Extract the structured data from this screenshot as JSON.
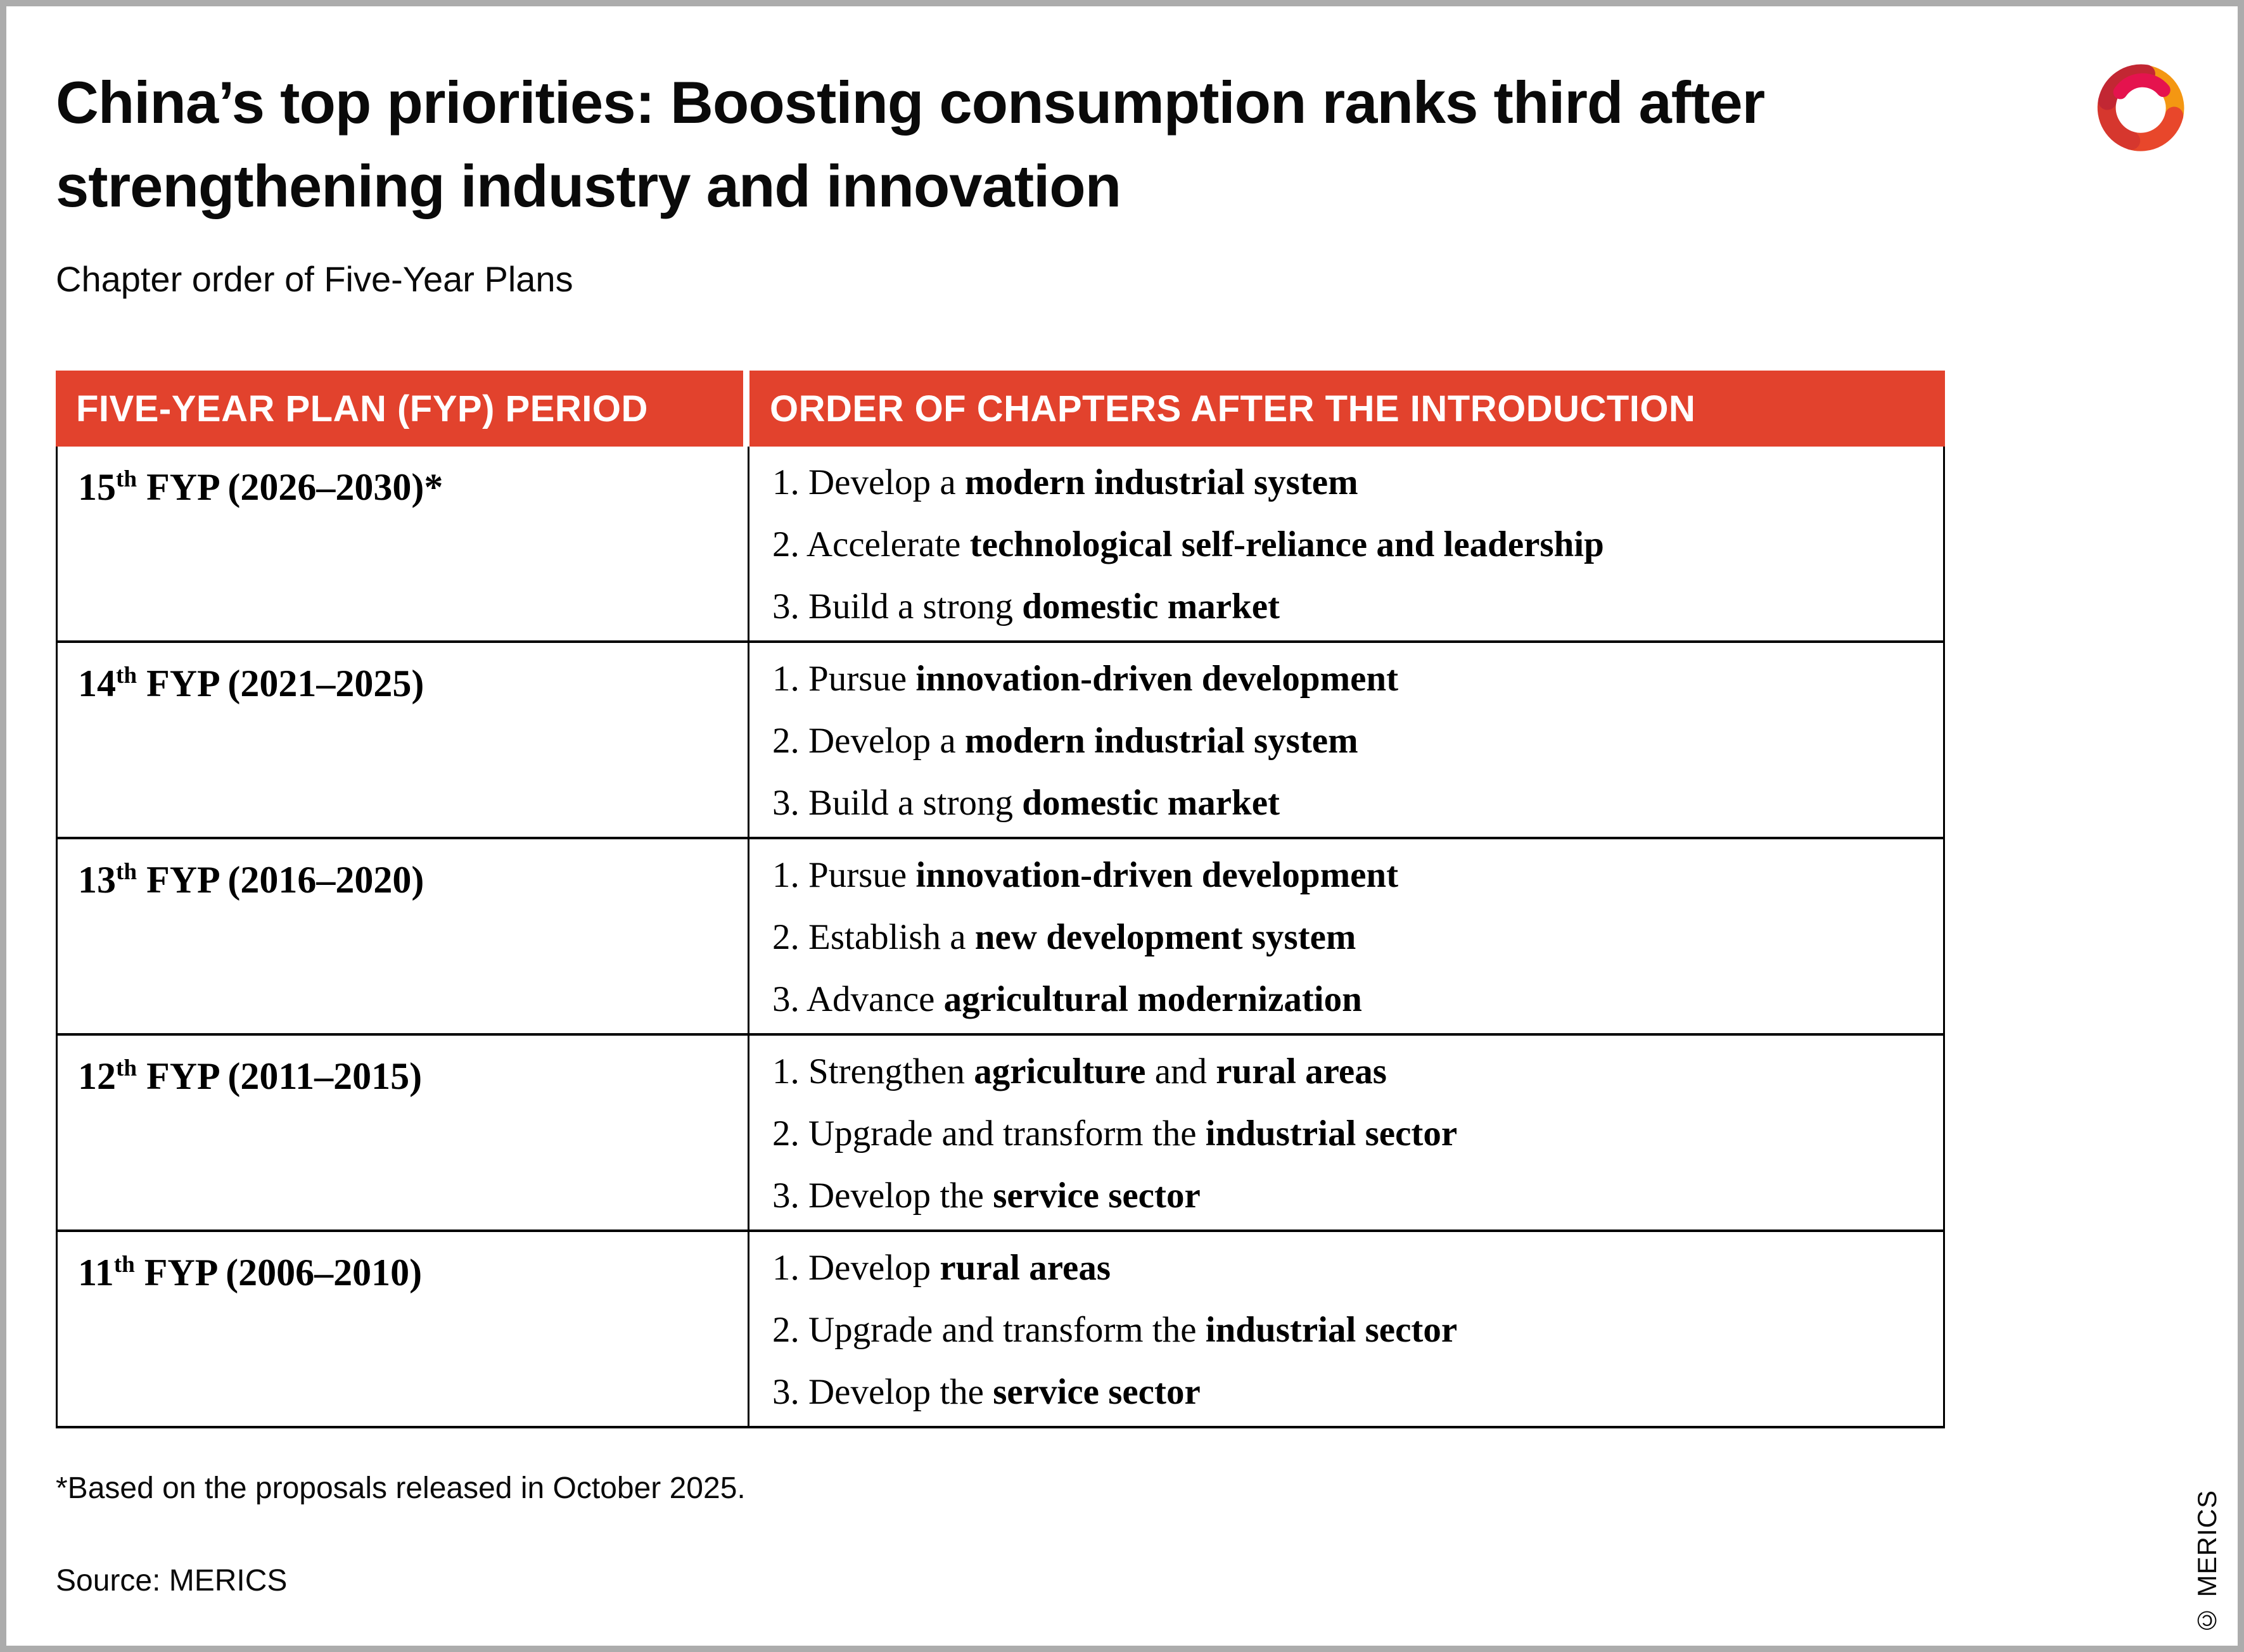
{
  "page": {
    "title_line1": "China’s top priorities: Boosting consumption ranks third after",
    "title_line2": "strengthening industry and innovation",
    "subtitle": "Chapter order of Five-Year Plans",
    "footnote": "*Based on the proposals released in October 2025.",
    "source": "Source: MERICS",
    "copyright": "© MERICS"
  },
  "colors": {
    "header_red": "#E2422D",
    "table_border": "#000000",
    "frame_gray": "#ACACAC",
    "logo_dark_red": "#C22733",
    "logo_red_orange": "#E8472B",
    "logo_mid_red": "#D6372E",
    "logo_orange": "#F49712",
    "logo_crimson": "#E5134E"
  },
  "table": {
    "columns": [
      "FIVE-YEAR PLAN (FYP) PERIOD",
      "ORDER OF CHAPTERS AFTER THE INTRODUCTION"
    ],
    "rows": [
      {
        "period": {
          "num": "15",
          "sup": "th",
          "rest": " FYP (2026–2030)*"
        },
        "items": [
          [
            {
              "t": "1. Develop a "
            },
            {
              "t": "modern industrial system",
              "b": true
            }
          ],
          [
            {
              "t": "2. Accelerate "
            },
            {
              "t": "technological self-reliance and leadership",
              "b": true
            }
          ],
          [
            {
              "t": "3. Build a strong "
            },
            {
              "t": "domestic market",
              "b": true
            }
          ]
        ]
      },
      {
        "period": {
          "num": "14",
          "sup": "th",
          "rest": " FYP (2021–2025)"
        },
        "items": [
          [
            {
              "t": "1. Pursue "
            },
            {
              "t": "innovation-driven development",
              "b": true
            }
          ],
          [
            {
              "t": "2. Develop a "
            },
            {
              "t": "modern industrial system",
              "b": true
            }
          ],
          [
            {
              "t": "3. Build a strong "
            },
            {
              "t": "domestic market",
              "b": true
            }
          ]
        ]
      },
      {
        "period": {
          "num": "13",
          "sup": "th",
          "rest": " FYP (2016–2020)"
        },
        "items": [
          [
            {
              "t": "1. Pursue "
            },
            {
              "t": "innovation-driven development",
              "b": true
            }
          ],
          [
            {
              "t": "2. Establish a "
            },
            {
              "t": "new development system",
              "b": true
            }
          ],
          [
            {
              "t": "3. Advance "
            },
            {
              "t": "agricultural modernization",
              "b": true
            }
          ]
        ]
      },
      {
        "period": {
          "num": "12",
          "sup": "th",
          "rest": " FYP (2011–2015)"
        },
        "items": [
          [
            {
              "t": "1. Strengthen "
            },
            {
              "t": "agriculture",
              "b": true
            },
            {
              "t": " and "
            },
            {
              "t": "rural areas",
              "b": true
            }
          ],
          [
            {
              "t": "2. Upgrade and transform the "
            },
            {
              "t": "industrial sector",
              "b": true
            }
          ],
          [
            {
              "t": "3. Develop the "
            },
            {
              "t": "service sector",
              "b": true
            }
          ]
        ]
      },
      {
        "period": {
          "num": "11",
          "sup": "th",
          "rest": " FYP (2006–2010)"
        },
        "items": [
          [
            {
              "t": "1. Develop "
            },
            {
              "t": "rural areas",
              "b": true
            }
          ],
          [
            {
              "t": "2. Upgrade and transform the "
            },
            {
              "t": "industrial sector",
              "b": true
            }
          ],
          [
            {
              "t": "3. Develop the "
            },
            {
              "t": "service sector",
              "b": true
            }
          ]
        ]
      }
    ]
  },
  "chart_data": {
    "type": "table",
    "title": "China’s top priorities: Boosting consumption ranks third after strengthening industry and innovation",
    "subtitle": "Chapter order of Five-Year Plans",
    "columns": [
      "FIVE-YEAR PLAN (FYP) PERIOD",
      "ORDER OF CHAPTERS AFTER THE INTRODUCTION"
    ],
    "rows": [
      {
        "period": "15th FYP (2026–2030)*",
        "chapters": [
          "1. Develop a modern industrial system",
          "2. Accelerate technological self-reliance and leadership",
          "3. Build a strong domestic market"
        ]
      },
      {
        "period": "14th FYP (2021–2025)",
        "chapters": [
          "1. Pursue innovation-driven development",
          "2. Develop a modern industrial system",
          "3. Build a strong domestic market"
        ]
      },
      {
        "period": "13th FYP (2016–2020)",
        "chapters": [
          "1. Pursue innovation-driven development",
          "2. Establish a new development system",
          "3. Advance agricultural modernization"
        ]
      },
      {
        "period": "12th FYP (2011–2015)",
        "chapters": [
          "1. Strengthen agriculture and rural areas",
          "2. Upgrade and transform the industrial sector",
          "3. Develop the service sector"
        ]
      },
      {
        "period": "11th FYP (2006–2010)",
        "chapters": [
          "1. Develop rural areas",
          "2. Upgrade and transform the industrial sector",
          "3. Develop the service sector"
        ]
      }
    ],
    "footnote": "*Based on the proposals released in October 2025.",
    "source": "Source: MERICS"
  }
}
